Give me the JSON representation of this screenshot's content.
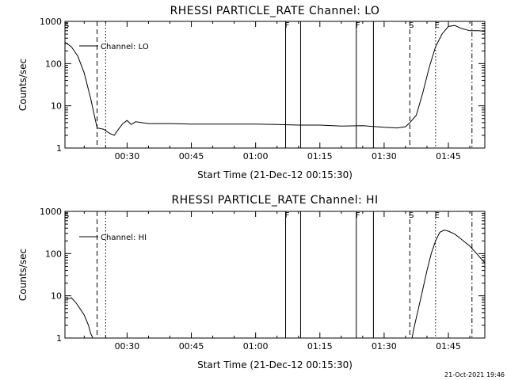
{
  "chart_data": [
    {
      "type": "line",
      "title": "RHESSI PARTICLE_RATE Channel: LO",
      "xlabel": "Start Time (21-Dec-12 00:15:30)",
      "ylabel": "Counts/sec",
      "yscale": "log",
      "ylim": [
        1,
        1000
      ],
      "xlim": [
        "00:15:30",
        "01:53:30"
      ],
      "x_tick_labels": [
        "00:30",
        "00:45",
        "01:00",
        "01:15",
        "01:30",
        "01:45"
      ],
      "y_tick_labels": [
        "1",
        "10",
        "100",
        "1000"
      ],
      "legend": {
        "entries": [
          "Channel: LO"
        ],
        "position": "top-left"
      },
      "series": [
        {
          "name": "Channel: LO",
          "x": [
            "00:15:30",
            "00:17:00",
            "00:18:30",
            "00:20:00",
            "00:21:30",
            "00:23:00",
            "00:24:30",
            "00:26:00",
            "00:27:00",
            "00:28:00",
            "00:29:00",
            "00:30:00",
            "00:31:00",
            "00:32:00",
            "00:35:00",
            "00:40:00",
            "00:45:00",
            "00:50:00",
            "00:55:00",
            "01:00:00",
            "01:05:00",
            "01:10:00",
            "01:15:00",
            "01:20:00",
            "01:25:00",
            "01:30:00",
            "01:33:00",
            "01:35:00",
            "01:36:00",
            "01:37:30",
            "01:39:00",
            "01:40:30",
            "01:42:00",
            "01:43:30",
            "01:45:00",
            "01:46:30",
            "01:48:00",
            "01:50:00",
            "01:52:00",
            "01:53:30"
          ],
          "y": [
            320,
            250,
            150,
            60,
            15,
            3,
            2.8,
            2.2,
            2.0,
            2.8,
            3.8,
            4.5,
            3.6,
            4.2,
            3.8,
            3.8,
            3.7,
            3.7,
            3.7,
            3.7,
            3.6,
            3.5,
            3.5,
            3.3,
            3.4,
            3.1,
            3.0,
            3.2,
            4.0,
            6,
            20,
            80,
            250,
            500,
            760,
            800,
            680,
            600,
            600,
            580
          ]
        }
      ],
      "markers": [
        {
          "label": "S",
          "time": "00:15:30",
          "style": "dash-dot"
        },
        {
          "time": "00:23:00",
          "style": "dashed"
        },
        {
          "time": "00:25:00",
          "style": "dotted"
        },
        {
          "label": "F",
          "time": "01:07:00",
          "style": "solid"
        },
        {
          "time": "01:10:30",
          "style": "solid"
        },
        {
          "label": "F",
          "time": "01:23:30",
          "style": "solid"
        },
        {
          "time": "01:27:30",
          "style": "solid"
        },
        {
          "label": "S",
          "time": "01:36:00",
          "style": "dashed"
        },
        {
          "label": "E",
          "time": "01:42:00",
          "style": "dotted"
        },
        {
          "time": "01:50:30",
          "style": "dash-dot"
        }
      ]
    },
    {
      "type": "line",
      "title": "RHESSI PARTICLE_RATE Channel: HI",
      "xlabel": "Start Time (21-Dec-12 00:15:30)",
      "ylabel": "Counts/sec",
      "yscale": "log",
      "ylim": [
        1,
        1000
      ],
      "xlim": [
        "00:15:30",
        "01:53:30"
      ],
      "x_tick_labels": [
        "00:30",
        "00:45",
        "01:00",
        "01:15",
        "01:30",
        "01:45"
      ],
      "y_tick_labels": [
        "1",
        "10",
        "100",
        "1000"
      ],
      "legend": {
        "entries": [
          "Channel: HI"
        ],
        "position": "top-left"
      },
      "series": [
        {
          "name": "Channel: HI",
          "segments": [
            {
              "x": [
                "00:15:30",
                "00:16:30",
                "00:17:00",
                "00:18:00",
                "00:19:00",
                "00:20:00",
                "00:21:00",
                "00:21:30",
                "00:22:00"
              ],
              "y": [
                9,
                8.5,
                9,
                7,
                5,
                3.5,
                2,
                1.3,
                1.0
              ]
            },
            {
              "x": [
                "01:36:30",
                "01:37:00",
                "01:38:00",
                "01:39:00",
                "01:40:00",
                "01:41:00",
                "01:42:00",
                "01:43:00",
                "01:44:00",
                "01:45:00",
                "01:46:30",
                "01:48:00",
                "01:50:00",
                "01:52:00",
                "01:53:30"
              ],
              "y": [
                1.0,
                1.8,
                5,
                14,
                40,
                100,
                200,
                320,
                360,
                340,
                290,
                220,
                150,
                90,
                60
              ]
            }
          ]
        }
      ],
      "markers": [
        {
          "label": "S",
          "time": "00:15:30",
          "style": "dash-dot"
        },
        {
          "time": "00:23:00",
          "style": "dashed"
        },
        {
          "time": "00:25:00",
          "style": "dotted"
        },
        {
          "label": "F",
          "time": "01:07:00",
          "style": "solid"
        },
        {
          "time": "01:10:30",
          "style": "solid"
        },
        {
          "label": "F",
          "time": "01:23:30",
          "style": "solid"
        },
        {
          "time": "01:27:30",
          "style": "solid"
        },
        {
          "label": "S",
          "time": "01:36:00",
          "style": "dashed"
        },
        {
          "label": "E",
          "time": "01:42:00",
          "style": "dotted"
        },
        {
          "time": "01:50:30",
          "style": "dash-dot"
        }
      ]
    }
  ],
  "footer": {
    "timestamp": "21-Oct-2021 19:46"
  }
}
